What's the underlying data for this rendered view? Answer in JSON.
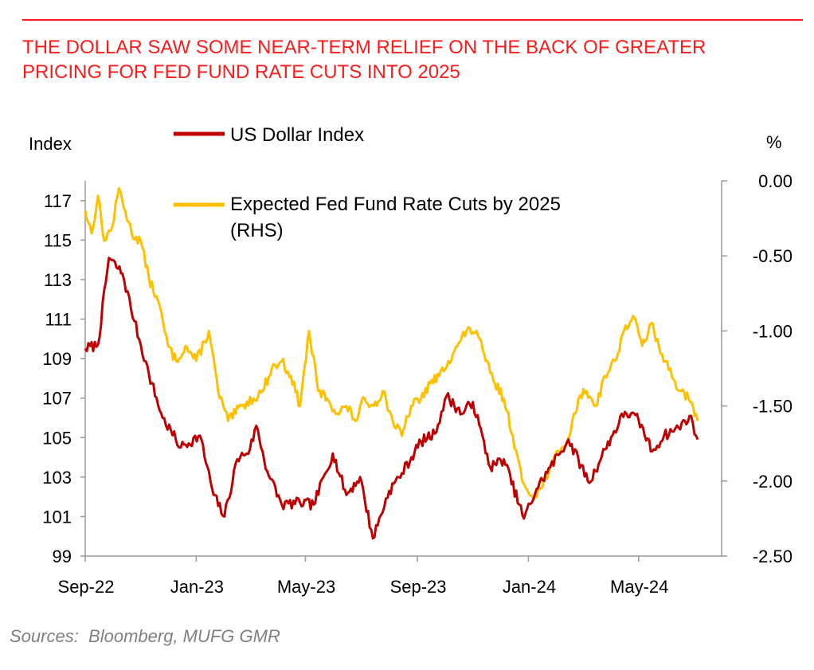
{
  "title": {
    "line1": "THE DOLLAR SAW SOME NEAR-TERM RELIEF ON THE BACK OF GREATER",
    "line2": "PRICING FOR FED FUND RATE CUTS INTO 2025"
  },
  "source": "Sources:  Bloomberg, MUFG GMR",
  "colors": {
    "title": "#ff1a1a",
    "usd": "#c00000",
    "cuts": "#ffc000",
    "axis": "#999999",
    "source": "#808080"
  },
  "chart_data": {
    "type": "line",
    "left_axis": {
      "label": "Index",
      "range": [
        99,
        118
      ],
      "ticks": [
        "117",
        "115",
        "113",
        "111",
        "109",
        "107",
        "105",
        "103",
        "101",
        "99"
      ]
    },
    "right_axis": {
      "label": "%",
      "range": [
        -2.5,
        0.0
      ],
      "ticks": [
        "0.00",
        "-0.50",
        "-1.00",
        "-1.50",
        "-2.00",
        "-2.50"
      ]
    },
    "x_axis": {
      "range": [
        "2022-09-01",
        "2024-07-05"
      ],
      "ticks": [
        "Sep-22",
        "Jan-23",
        "May-23",
        "Sep-23",
        "Jan-24",
        "May-24"
      ]
    },
    "grid": false,
    "legend_position": "top-left",
    "series": [
      {
        "name": "US Dollar Index",
        "axis": "left",
        "color": "#c00000",
        "points": [
          [
            "2022-09-01",
            109.5
          ],
          [
            "2022-09-15",
            109.7
          ],
          [
            "2022-09-27",
            114.1
          ],
          [
            "2022-10-12",
            113.3
          ],
          [
            "2022-10-25",
            110.9
          ],
          [
            "2022-11-10",
            108.2
          ],
          [
            "2022-11-25",
            106.0
          ],
          [
            "2022-12-15",
            104.5
          ],
          [
            "2023-01-05",
            105.1
          ],
          [
            "2023-01-20",
            102.1
          ],
          [
            "2023-02-01",
            101.0
          ],
          [
            "2023-02-15",
            103.9
          ],
          [
            "2023-03-01",
            104.4
          ],
          [
            "2023-03-08",
            105.6
          ],
          [
            "2023-03-20",
            103.3
          ],
          [
            "2023-04-05",
            101.6
          ],
          [
            "2023-04-25",
            101.7
          ],
          [
            "2023-05-10",
            101.6
          ],
          [
            "2023-05-31",
            104.2
          ],
          [
            "2023-06-15",
            102.1
          ],
          [
            "2023-06-30",
            103.0
          ],
          [
            "2023-07-14",
            99.9
          ],
          [
            "2023-08-01",
            102.3
          ],
          [
            "2023-08-15",
            103.2
          ],
          [
            "2023-09-05",
            104.8
          ],
          [
            "2023-09-20",
            105.2
          ],
          [
            "2023-10-03",
            107.1
          ],
          [
            "2023-10-20",
            106.2
          ],
          [
            "2023-11-01",
            106.8
          ],
          [
            "2023-11-20",
            103.5
          ],
          [
            "2023-12-05",
            103.9
          ],
          [
            "2023-12-27",
            100.9
          ],
          [
            "2024-01-10",
            102.4
          ],
          [
            "2024-01-25",
            103.5
          ],
          [
            "2024-02-14",
            104.9
          ],
          [
            "2024-03-08",
            102.7
          ],
          [
            "2024-03-25",
            104.4
          ],
          [
            "2024-04-16",
            106.3
          ],
          [
            "2024-05-01",
            105.9
          ],
          [
            "2024-05-16",
            104.3
          ],
          [
            "2024-05-29",
            105.1
          ],
          [
            "2024-06-14",
            105.5
          ],
          [
            "2024-06-26",
            106.1
          ],
          [
            "2024-07-05",
            104.9
          ]
        ]
      },
      {
        "name": "Expected Fed Fund Rate Cuts by 2025 (RHS)",
        "axis": "right",
        "color": "#ffc000",
        "points": [
          [
            "2022-09-01",
            -0.2
          ],
          [
            "2022-09-08",
            -0.35
          ],
          [
            "2022-09-15",
            -0.1
          ],
          [
            "2022-09-22",
            -0.4
          ],
          [
            "2022-10-01",
            -0.3
          ],
          [
            "2022-10-08",
            -0.05
          ],
          [
            "2022-10-15",
            -0.2
          ],
          [
            "2022-10-22",
            -0.35
          ],
          [
            "2022-11-01",
            -0.4
          ],
          [
            "2022-11-10",
            -0.65
          ],
          [
            "2022-11-20",
            -0.8
          ],
          [
            "2022-12-01",
            -1.1
          ],
          [
            "2022-12-10",
            -1.2
          ],
          [
            "2022-12-20",
            -1.1
          ],
          [
            "2023-01-01",
            -1.2
          ],
          [
            "2023-01-15",
            -1.0
          ],
          [
            "2023-01-25",
            -1.4
          ],
          [
            "2023-02-05",
            -1.6
          ],
          [
            "2023-02-20",
            -1.5
          ],
          [
            "2023-03-05",
            -1.45
          ],
          [
            "2023-03-15",
            -1.4
          ],
          [
            "2023-03-25",
            -1.25
          ],
          [
            "2023-04-05",
            -1.2
          ],
          [
            "2023-04-15",
            -1.3
          ],
          [
            "2023-04-25",
            -1.5
          ],
          [
            "2023-05-05",
            -1.0
          ],
          [
            "2023-05-15",
            -1.4
          ],
          [
            "2023-05-25",
            -1.45
          ],
          [
            "2023-06-05",
            -1.55
          ],
          [
            "2023-06-15",
            -1.5
          ],
          [
            "2023-06-25",
            -1.6
          ],
          [
            "2023-07-05",
            -1.45
          ],
          [
            "2023-07-15",
            -1.5
          ],
          [
            "2023-07-25",
            -1.4
          ],
          [
            "2023-08-05",
            -1.6
          ],
          [
            "2023-08-15",
            -1.7
          ],
          [
            "2023-08-25",
            -1.5
          ],
          [
            "2023-09-05",
            -1.45
          ],
          [
            "2023-09-15",
            -1.35
          ],
          [
            "2023-09-25",
            -1.3
          ],
          [
            "2023-10-05",
            -1.2
          ],
          [
            "2023-10-15",
            -1.1
          ],
          [
            "2023-10-25",
            -1.0
          ],
          [
            "2023-11-05",
            -1.0
          ],
          [
            "2023-11-15",
            -1.2
          ],
          [
            "2023-11-25",
            -1.35
          ],
          [
            "2023-12-05",
            -1.45
          ],
          [
            "2023-12-15",
            -1.7
          ],
          [
            "2023-12-25",
            -2.0
          ],
          [
            "2024-01-05",
            -2.1
          ],
          [
            "2024-01-15",
            -2.05
          ],
          [
            "2024-01-25",
            -1.9
          ],
          [
            "2024-02-05",
            -1.8
          ],
          [
            "2024-02-15",
            -1.7
          ],
          [
            "2024-02-25",
            -1.45
          ],
          [
            "2024-03-05",
            -1.4
          ],
          [
            "2024-03-15",
            -1.5
          ],
          [
            "2024-03-25",
            -1.3
          ],
          [
            "2024-04-05",
            -1.2
          ],
          [
            "2024-04-15",
            -1.0
          ],
          [
            "2024-04-25",
            -0.9
          ],
          [
            "2024-05-05",
            -1.1
          ],
          [
            "2024-05-15",
            -0.95
          ],
          [
            "2024-05-25",
            -1.15
          ],
          [
            "2024-06-05",
            -1.25
          ],
          [
            "2024-06-15",
            -1.4
          ],
          [
            "2024-06-25",
            -1.45
          ],
          [
            "2024-07-05",
            -1.6
          ]
        ]
      }
    ]
  }
}
